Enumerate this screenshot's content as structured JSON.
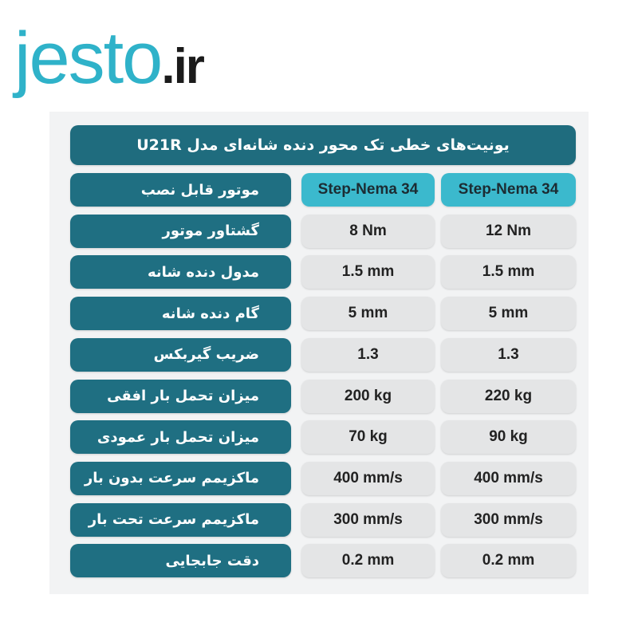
{
  "logo": {
    "name": "jesto",
    "suffix": ".ir"
  },
  "table": {
    "title": "یونیت‌های خطی تک محور دنده شانه‌ای مدل U21R",
    "rows": [
      [
        "موتور قابل نصب",
        "Step-Nema 34",
        "Step-Nema 34"
      ],
      [
        "گشتاور موتور",
        "12 Nm",
        "8 Nm"
      ],
      [
        "مدول دنده شانه",
        "1.5 mm",
        "1.5 mm"
      ],
      [
        "گام دنده شانه",
        "5 mm",
        "5 mm"
      ],
      [
        "ضریب گیربکس",
        "1.3",
        "1.3"
      ],
      [
        "میزان تحمل بار افقی",
        "220 kg",
        "200 kg"
      ],
      [
        "میزان تحمل بار عمودی",
        "90 kg",
        "70 kg"
      ],
      [
        "ماکزیمم سرعت بدون بار",
        "400 mm/s",
        "400 mm/s"
      ],
      [
        "ماکزیمم سرعت تحت بار",
        "300 mm/s",
        "300 mm/s"
      ],
      [
        "دقت جابجایی",
        "0.2 mm",
        "0.2 mm"
      ]
    ]
  }
}
